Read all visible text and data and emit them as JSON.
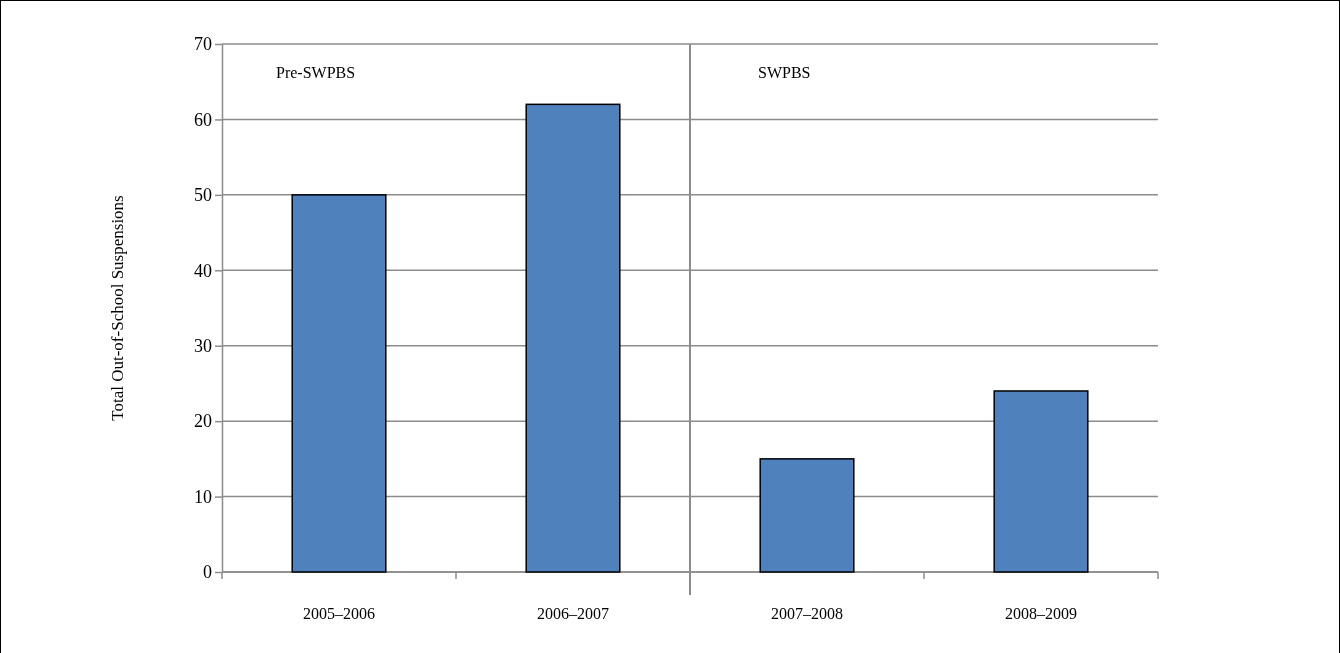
{
  "chart_data": {
    "type": "bar",
    "ylabel": "Total Out-of-School Suspensions",
    "categories": [
      "2005–2006",
      "2006–2007",
      "2007–2008",
      "2008–2009"
    ],
    "values": [
      50,
      62,
      15,
      24
    ],
    "color": "#4f81bd",
    "ylim": [
      0,
      70
    ],
    "yticks": [
      0,
      10,
      20,
      30,
      40,
      50,
      60,
      70
    ],
    "grid": "y",
    "ref_lines": [
      {
        "axis": "x",
        "value": "2007–2008"
      }
    ],
    "annotations": [
      "Pre-SWPBS",
      "SWPBS"
    ]
  }
}
